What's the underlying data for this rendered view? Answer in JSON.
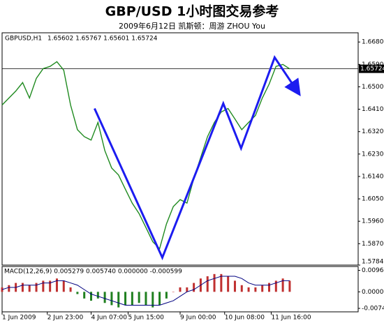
{
  "chart_data": [
    {
      "type": "line",
      "title": "GBP/USD 1小时图交易参考",
      "subtitle": "2009年6月12日   凯斯顿：周游 ZHOU You",
      "ohlc": "1.65602 1.65767 1.65601 1.65724",
      "last_price": 1.65724,
      "xlim": [
        0,
        52
      ],
      "xticks": [
        {
          "value": 0,
          "label": "1 Jun 2009"
        },
        {
          "value": 6.6,
          "label": "2 Jun 23:00"
        },
        {
          "value": 13,
          "label": "4 Jun 07:00"
        },
        {
          "value": 18.4,
          "label": "5 Jun 15:00"
        },
        {
          "value": 26,
          "label": "9 Jun 00:00"
        },
        {
          "value": 32.5,
          "label": "10 Jun 08:00"
        },
        {
          "value": 39.3,
          "label": "11 Jun 16:00"
        }
      ],
      "ylim": [
        1.5784,
        1.6717
      ],
      "yticks": [
        {
          "value": 1.668,
          "label": "1.66800"
        },
        {
          "value": 1.659,
          "label": "1.65900"
        },
        {
          "value": 1.65,
          "label": "1.65000"
        },
        {
          "value": 1.641,
          "label": "1.64100"
        },
        {
          "value": 1.632,
          "label": "1.63200"
        },
        {
          "value": 1.623,
          "label": "1.62300"
        },
        {
          "value": 1.614,
          "label": "1.61400"
        },
        {
          "value": 1.605,
          "label": "1.60500"
        },
        {
          "value": 1.596,
          "label": "1.59600"
        },
        {
          "value": 1.587,
          "label": "1.58700"
        },
        {
          "value": 1.5784,
          "label": "1.57840"
        }
      ],
      "series": [
        {
          "name": "GBPUSD,H1",
          "color": "#1f8a1f",
          "x": [
            0,
            1,
            2,
            3,
            4,
            5,
            6,
            7,
            8,
            9,
            10,
            11,
            12,
            13,
            14,
            15,
            16,
            17,
            18,
            19,
            20,
            21,
            22,
            23,
            24,
            25,
            26,
            27,
            28,
            29,
            30,
            31,
            32,
            33,
            34,
            35,
            36,
            37,
            38,
            39,
            40,
            41,
            42
          ],
          "values": [
            1.6427,
            1.6455,
            1.6483,
            1.6517,
            1.6455,
            1.6534,
            1.6573,
            1.6582,
            1.6601,
            1.6567,
            1.6427,
            1.6328,
            1.63,
            1.6286,
            1.6357,
            1.6244,
            1.6174,
            1.6146,
            1.6089,
            1.6033,
            1.5991,
            1.5935,
            1.5878,
            1.585,
            1.5949,
            1.6019,
            1.6047,
            1.6033,
            1.6132,
            1.6216,
            1.63,
            1.6357,
            1.6399,
            1.6413,
            1.6371,
            1.6328,
            1.6357,
            1.6385,
            1.6455,
            1.6511,
            1.6582,
            1.659,
            1.6572
          ]
        },
        {
          "color": "#1c1cf0",
          "x": [
            13.5,
            23.4,
            32.3,
            34.9,
            39.8,
            43.1
          ],
          "values": [
            1.6413,
            1.5814,
            1.6433,
            1.6253,
            1.6618,
            1.6483
          ]
        }
      ]
    },
    {
      "type": "macd",
      "label": "MACD(12,26,9) 0.005279 0.005740 0.000000 -0.000599",
      "xlim": [
        0,
        52
      ],
      "ylim": [
        -0.009,
        0.0114
      ],
      "yticks": [
        0.00966,
        {
          "value": 0,
          "label": "0.00000"
        },
        -0.00744
      ],
      "color_up": "#c03030",
      "color_down": "#208020",
      "signal_color": "#000080",
      "values": [
        0.002,
        0.003,
        0.004,
        0.004,
        0.003,
        0.004,
        0.005,
        0.005,
        0.006,
        0.005,
        0.002,
        -0.001,
        -0.003,
        -0.004,
        -0.003,
        -0.005,
        -0.006,
        -0.007,
        -0.006,
        -0.006,
        -0.005,
        -0.006,
        -0.007,
        -0.006,
        -0.003,
        0,
        0.002,
        0.002,
        0.004,
        0.006,
        0.007,
        0.008,
        0.008,
        0.007,
        0.005,
        0.003,
        0.002,
        0.002,
        0.003,
        0.004,
        0.005,
        0.006,
        0.005
      ],
      "signal": [
        0.001,
        0.002,
        0.002,
        0.003,
        0.003,
        0.003,
        0.004,
        0.004,
        0.005,
        0.005,
        0.004,
        0.003,
        0.001,
        -0.001,
        -0.002,
        -0.003,
        -0.004,
        -0.005,
        -0.006,
        -0.006,
        -0.006,
        -0.006,
        -0.006,
        -0.006,
        -0.005,
        -0.004,
        -0.002,
        0,
        0.001,
        0.003,
        0.005,
        0.006,
        0.007,
        0.007,
        0.007,
        0.006,
        0.004,
        0.003,
        0.003,
        0.003,
        0.004,
        0.005,
        0.005
      ]
    }
  ]
}
